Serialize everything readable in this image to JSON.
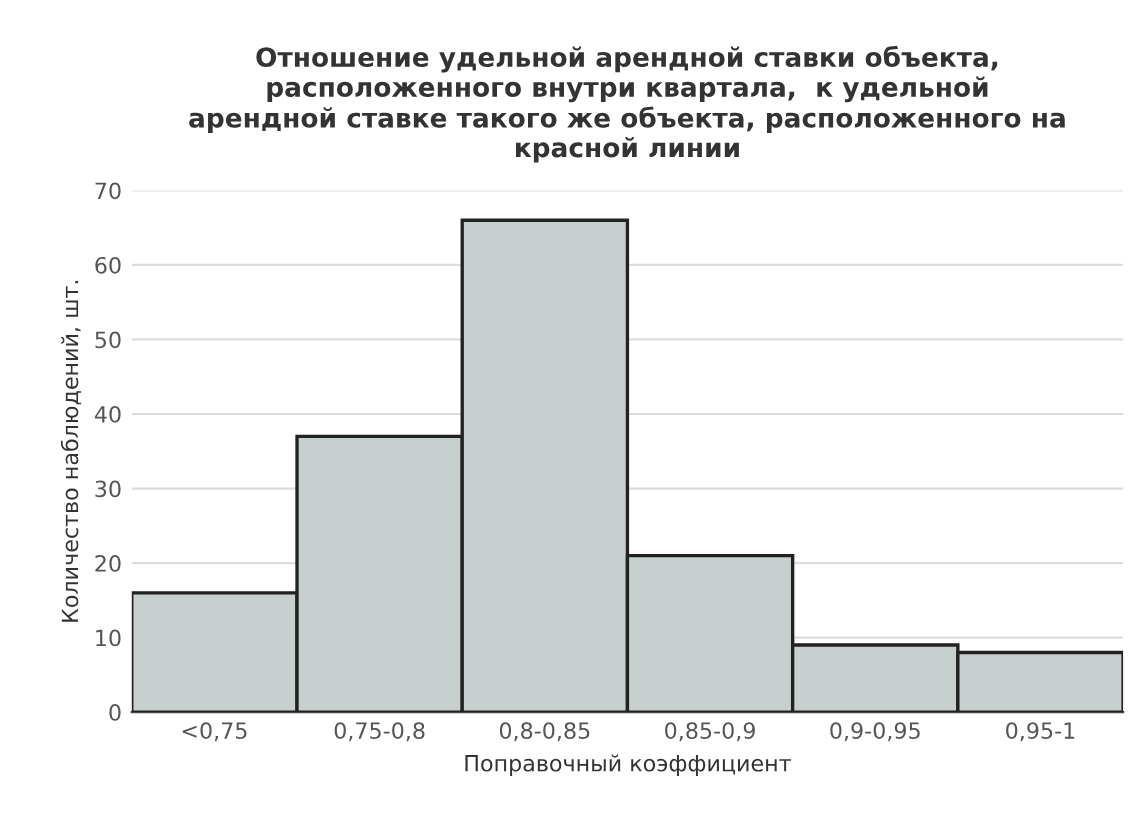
{
  "chart_data": {
    "type": "bar",
    "title": "Отношение удельной арендной ставки объекта,\nрасположенного внутри квартала,  к удельной\nарендной ставке такого же объекта, расположенного на\nкрасной линии",
    "xlabel": "Поправочный коэффициент",
    "ylabel": "Количество наблюдений, шт.",
    "categories": [
      "<0,75",
      "0,75-0,8",
      "0,8-0,85",
      "0,85-0,9",
      "0,9-0,95",
      "0,95-1"
    ],
    "values": [
      16,
      37,
      66,
      21,
      9,
      8
    ],
    "color": "#c8cfcf",
    "ylim": [
      0,
      70
    ],
    "yticks": [
      0,
      10,
      20,
      30,
      40,
      50,
      60,
      70
    ],
    "grid": "y",
    "legend": false
  }
}
